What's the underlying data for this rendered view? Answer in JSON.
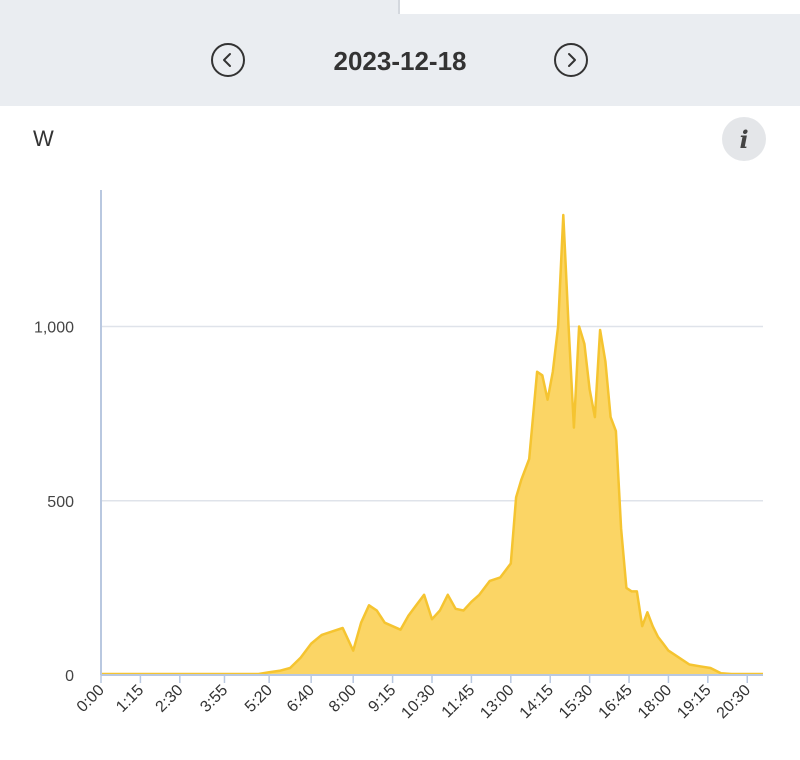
{
  "header": {
    "date": "2023-12-18",
    "prev_icon": "chevron-left-icon",
    "next_icon": "chevron-right-icon"
  },
  "chart": {
    "unit_label": "W",
    "info_label": "i"
  },
  "colors": {
    "fill": "#fbd565",
    "line": "#f5c430",
    "grid": "#dfe3ea",
    "axis": "#b9c8e0",
    "bar_bg": "#eaedf1"
  },
  "chart_data": {
    "type": "area",
    "title": "",
    "xlabel": "",
    "ylabel": "W",
    "ylim": [
      0,
      1320
    ],
    "yticks": [
      0,
      500,
      1000
    ],
    "ytick_labels": [
      "0",
      "500",
      "1,000"
    ],
    "xtick_labels": [
      "0:00",
      "1:15",
      "2:30",
      "3:55",
      "5:20",
      "6:40",
      "8:00",
      "9:15",
      "10:30",
      "11:45",
      "13:00",
      "14:15",
      "15:30",
      "16:45",
      "18:00",
      "19:15",
      "20:30"
    ],
    "grid": true,
    "legend": "none",
    "series": [
      {
        "x": [
          "0:00",
          "1:15",
          "2:30",
          "3:55",
          "5:00",
          "5:20",
          "5:40",
          "6:00",
          "6:20",
          "6:40",
          "7:00",
          "7:20",
          "7:40",
          "8:00",
          "8:15",
          "8:30",
          "8:45",
          "9:00",
          "9:15",
          "9:30",
          "9:45",
          "10:00",
          "10:15",
          "10:30",
          "10:45",
          "11:00",
          "11:15",
          "11:30",
          "11:45",
          "12:00",
          "12:20",
          "12:40",
          "13:00",
          "13:10",
          "13:20",
          "13:35",
          "13:50",
          "14:00",
          "14:10",
          "14:20",
          "14:30",
          "14:40",
          "14:50",
          "15:00",
          "15:10",
          "15:20",
          "15:30",
          "15:40",
          "15:50",
          "16:00",
          "16:10",
          "16:20",
          "16:30",
          "16:40",
          "16:50",
          "17:00",
          "17:10",
          "17:20",
          "17:30",
          "17:40",
          "17:50",
          "18:00",
          "18:20",
          "18:40",
          "19:00",
          "19:20",
          "19:40",
          "20:00",
          "20:20",
          "20:40",
          "21:00"
        ],
        "values": [
          3,
          3,
          3,
          3,
          3,
          8,
          12,
          20,
          50,
          90,
          115,
          125,
          135,
          70,
          150,
          200,
          185,
          150,
          140,
          130,
          170,
          200,
          230,
          160,
          185,
          230,
          190,
          185,
          210,
          230,
          270,
          280,
          320,
          510,
          560,
          620,
          870,
          860,
          790,
          870,
          1000,
          1320,
          1000,
          710,
          1000,
          950,
          820,
          740,
          990,
          900,
          740,
          700,
          420,
          250,
          240,
          240,
          140,
          180,
          140,
          110,
          90,
          70,
          50,
          30,
          25,
          20,
          5,
          3,
          3,
          3,
          3
        ]
      }
    ]
  }
}
